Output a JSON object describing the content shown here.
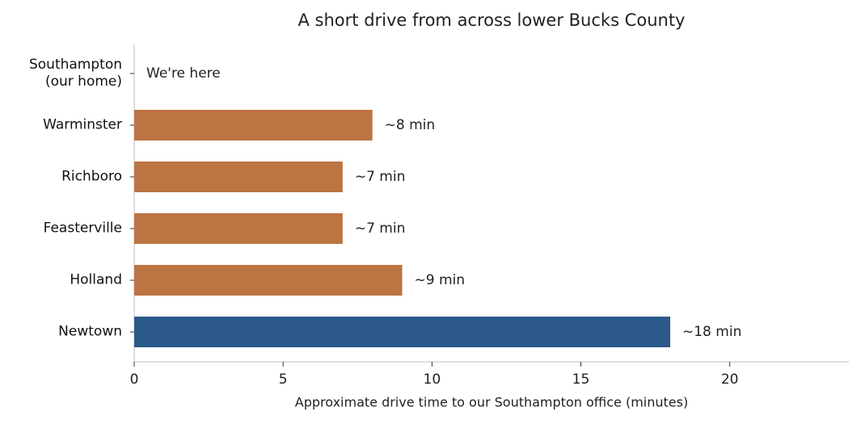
{
  "chart_data": {
    "type": "bar",
    "orientation": "horizontal",
    "title": "A short drive from across lower Bucks County",
    "xlabel": "Approximate drive time to our Southampton office (minutes)",
    "categories": [
      "Southampton\n(our home)",
      "Warminster",
      "Richboro",
      "Feasterville",
      "Holland",
      "Newtown"
    ],
    "values": [
      0,
      8,
      7,
      7,
      9,
      18
    ],
    "value_labels": [
      "We're here",
      "~8 min",
      "~7 min",
      "~7 min",
      "~9 min",
      "~18 min"
    ],
    "colors": [
      "#bd7443",
      "#bd7443",
      "#bd7443",
      "#bd7443",
      "#bd7443",
      "#2b5a8a"
    ],
    "xlim": [
      0,
      24
    ],
    "xticks": [
      0,
      5,
      10,
      15,
      20
    ]
  }
}
